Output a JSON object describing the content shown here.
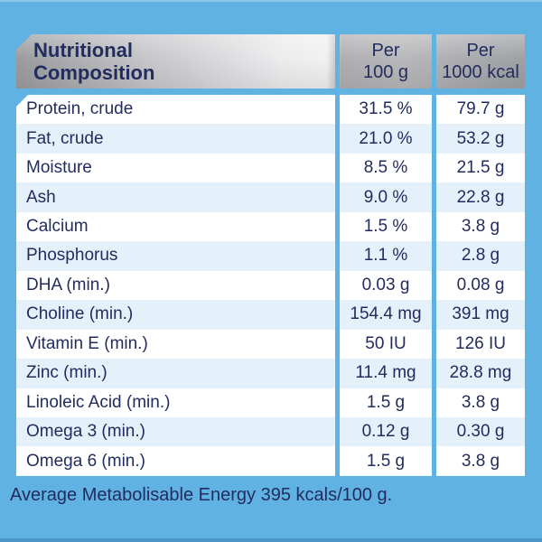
{
  "colors": {
    "background": "#60B2E3",
    "text": "#232C5E",
    "row_alt": "#E4F1FB",
    "row_white": "#FFFFFF"
  },
  "table": {
    "header": {
      "title_lines": [
        "Nutritional",
        "Composition"
      ],
      "per_100g_lines": [
        "Per",
        "100 g"
      ],
      "per_1000_kcal_lines": [
        "Per",
        "1000 kcal"
      ]
    },
    "rows": [
      {
        "label": "Protein, crude",
        "per_100g": "31.5 %",
        "per_1000_kcal": "79.7 g"
      },
      {
        "label": "Fat, crude",
        "per_100g": "21.0 %",
        "per_1000_kcal": "53.2 g"
      },
      {
        "label": "Moisture",
        "per_100g": "8.5 %",
        "per_1000_kcal": "21.5 g"
      },
      {
        "label": "Ash",
        "per_100g": "9.0 %",
        "per_1000_kcal": "22.8 g"
      },
      {
        "label": "Calcium",
        "per_100g": "1.5 %",
        "per_1000_kcal": "3.8 g"
      },
      {
        "label": "Phosphorus",
        "per_100g": "1.1 %",
        "per_1000_kcal": "2.8 g"
      },
      {
        "label": "DHA (min.)",
        "per_100g": "0.03 g",
        "per_1000_kcal": "0.08 g"
      },
      {
        "label": "Choline (min.)",
        "per_100g": "154.4 mg",
        "per_1000_kcal": "391 mg"
      },
      {
        "label": "Vitamin E (min.)",
        "per_100g": "50 IU",
        "per_1000_kcal": "126 IU"
      },
      {
        "label": "Zinc (min.)",
        "per_100g": "11.4 mg",
        "per_1000_kcal": "28.8 mg"
      },
      {
        "label": "Linoleic Acid (min.)",
        "per_100g": "1.5 g",
        "per_1000_kcal": "3.8 g"
      },
      {
        "label": "Omega 3 (min.)",
        "per_100g": "0.12 g",
        "per_1000_kcal": "0.30 g"
      },
      {
        "label": "Omega 6 (min.)",
        "per_100g": "1.5 g",
        "per_1000_kcal": "3.8 g"
      }
    ]
  },
  "footer": {
    "text": "Average Metabolisable Energy 395 kcals/100 g."
  }
}
